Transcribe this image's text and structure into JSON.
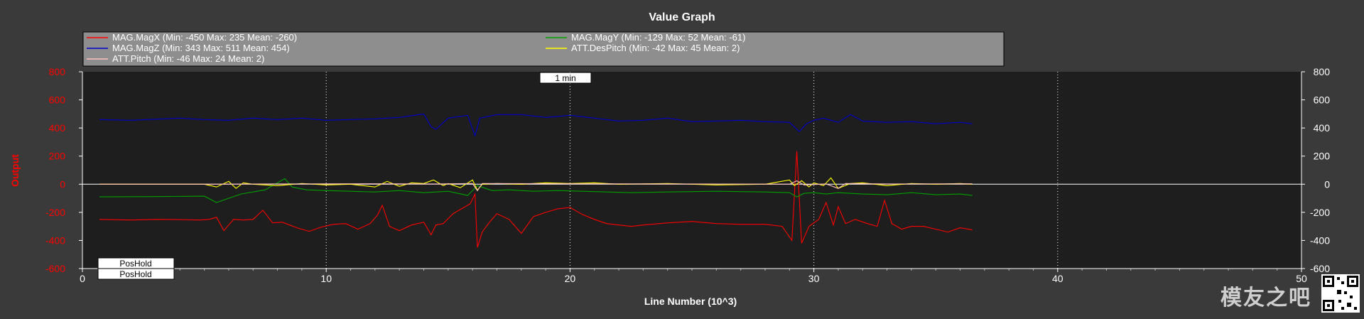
{
  "chart_data": {
    "type": "line",
    "title": "Value Graph",
    "xlabel": "Line Number (10^3)",
    "ylabel": "Output",
    "xlim": [
      0,
      50
    ],
    "ylim": [
      -600,
      800
    ],
    "xticks": [
      "0",
      "10",
      "20",
      "30",
      "40",
      "50"
    ],
    "yticks": [
      "800",
      "600",
      "400",
      "200",
      "0",
      "-200",
      "-400",
      "-600"
    ],
    "grid": true,
    "legend_position": "top",
    "annotations": {
      "time_marker": "1 min",
      "modes": [
        "PosHold",
        "PosHold"
      ]
    },
    "series": [
      {
        "name": "MAG.MagX (Min: -450 Max: 235 Mean: -260)",
        "color": "#ff0000",
        "x": [
          0.7,
          2,
          3,
          4,
          4.8,
          5.2,
          5.5,
          5.8,
          6.2,
          6.6,
          7,
          7.4,
          7.8,
          8.2,
          8.8,
          9.3,
          9.8,
          10.3,
          10.8,
          11.3,
          11.8,
          12.1,
          12.3,
          12.6,
          13,
          13.5,
          14,
          14.3,
          14.5,
          14.8,
          15.2,
          15.6,
          15.9,
          16.1,
          16.2,
          16.4,
          16.7,
          17,
          17.5,
          18,
          18.5,
          19,
          19.5,
          20,
          20.5,
          21,
          21.5,
          22,
          22.5,
          23,
          24,
          25,
          26,
          27,
          28,
          28.7,
          29.1,
          29.3,
          29.5,
          29.8,
          30.2,
          30.5,
          30.8,
          31,
          31.3,
          31.7,
          32.2,
          32.6,
          32.9,
          33.2,
          33.6,
          34,
          34.5,
          35,
          35.5,
          36,
          36.5
        ],
        "y": [
          -250,
          -255,
          -250,
          -252,
          -255,
          -250,
          -235,
          -330,
          -250,
          -255,
          -250,
          -185,
          -275,
          -270,
          -310,
          -335,
          -305,
          -285,
          -280,
          -320,
          -280,
          -220,
          -150,
          -300,
          -330,
          -290,
          -270,
          -360,
          -290,
          -280,
          -210,
          -170,
          -140,
          -70,
          -450,
          -340,
          -270,
          -210,
          -250,
          -350,
          -230,
          -200,
          -175,
          -165,
          -215,
          -250,
          -280,
          -290,
          -300,
          -290,
          -275,
          -265,
          -280,
          -285,
          -285,
          -300,
          -400,
          235,
          -420,
          -300,
          -250,
          -130,
          -290,
          -160,
          -280,
          -250,
          -280,
          -300,
          -115,
          -280,
          -320,
          -300,
          -300,
          -320,
          -340,
          -310,
          -325
        ]
      },
      {
        "name": "MAG.MagY (Min: -129 Max: 52 Mean: -61)",
        "color": "#00a000",
        "x": [
          0.7,
          3,
          5,
          5.5,
          6.5,
          7.5,
          8.3,
          8.6,
          9.2,
          10,
          11,
          12,
          13,
          14,
          15,
          15.8,
          16.2,
          16.8,
          17.5,
          18.5,
          19.5,
          20.5,
          21.5,
          22.5,
          24,
          26,
          28,
          29,
          29.3,
          29.6,
          30,
          30.5,
          31,
          32,
          33,
          34,
          35,
          36,
          36.5
        ],
        "y": [
          -90,
          -88,
          -85,
          -130,
          -70,
          -40,
          40,
          -20,
          -40,
          -45,
          -50,
          -55,
          -45,
          -60,
          -50,
          -80,
          -10,
          -45,
          -40,
          -50,
          -45,
          -50,
          -55,
          -60,
          -55,
          -50,
          -55,
          -60,
          -90,
          -65,
          -60,
          -70,
          -60,
          -70,
          -75,
          -60,
          -75,
          -70,
          -80
        ]
      },
      {
        "name": "MAG.MagZ (Min: 343 Max: 511 Mean: 454)",
        "color": "#0000c8",
        "x": [
          0.7,
          2,
          4,
          5,
          6,
          7,
          8,
          9,
          10,
          11,
          12,
          13,
          14,
          14.3,
          14.5,
          15,
          15.8,
          16.1,
          16.3,
          17,
          18,
          19,
          20,
          21,
          22,
          23,
          24,
          25,
          26,
          27,
          28,
          29,
          29.4,
          29.7,
          30,
          30.4,
          31,
          31.5,
          32,
          33,
          34,
          35,
          36,
          36.5
        ],
        "y": [
          460,
          455,
          470,
          460,
          455,
          470,
          460,
          470,
          455,
          460,
          465,
          475,
          500,
          410,
          390,
          470,
          490,
          345,
          470,
          495,
          495,
          475,
          490,
          470,
          450,
          455,
          470,
          445,
          450,
          455,
          445,
          440,
          375,
          430,
          455,
          470,
          440,
          495,
          450,
          440,
          445,
          430,
          440,
          430
        ]
      },
      {
        "name": "ATT.DesPitch (Min: -42 Max: 45 Mean: 2)",
        "color": "#ffff00",
        "x": [
          0.7,
          4.5,
          5,
          5.5,
          6,
          6.3,
          6.6,
          7,
          8,
          9,
          10,
          11,
          12,
          12.5,
          13,
          13.5,
          14,
          14.4,
          14.8,
          15,
          15.5,
          16,
          16.2,
          16.4,
          17,
          18,
          19,
          20,
          21,
          22,
          24,
          26,
          28,
          29,
          29.2,
          29.5,
          29.8,
          30,
          30.4,
          30.7,
          31,
          31.5,
          32,
          33,
          34,
          35,
          36,
          36.5
        ],
        "y": [
          0,
          0,
          0,
          -20,
          20,
          -30,
          10,
          0,
          -10,
          5,
          -5,
          0,
          -20,
          20,
          -15,
          10,
          5,
          30,
          -10,
          5,
          -25,
          30,
          -42,
          0,
          5,
          0,
          10,
          5,
          10,
          0,
          5,
          -5,
          0,
          30,
          -10,
          25,
          -20,
          10,
          -10,
          45,
          -30,
          5,
          10,
          -10,
          5,
          0,
          5,
          0
        ]
      },
      {
        "name": "ATT.Pitch (Min: -46 Max: 24 Mean: 2)",
        "color": "#ffc0c0",
        "x": [
          0.7,
          5,
          8,
          12,
          14.5,
          16,
          16.2,
          16.4,
          20,
          24,
          29,
          29.3,
          29.6,
          30.5,
          31,
          31.3,
          33,
          36.5
        ],
        "y": [
          0,
          0,
          2,
          3,
          2,
          5,
          -46,
          5,
          3,
          2,
          0,
          24,
          -5,
          2,
          -30,
          5,
          2,
          3
        ]
      }
    ]
  }
}
